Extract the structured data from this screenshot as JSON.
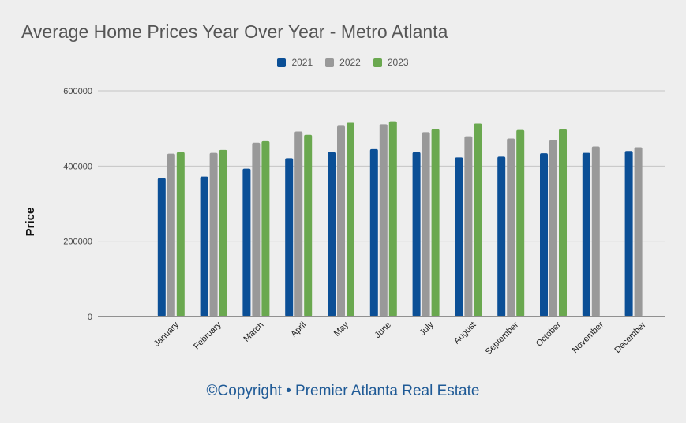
{
  "chart_data": {
    "type": "bar",
    "title": "Average Home Prices Year Over Year - Metro Atlanta",
    "xlabel": "",
    "ylabel": "Price",
    "ylim": [
      0,
      600000
    ],
    "yticks": [
      "0",
      "200000",
      "400000",
      "600000"
    ],
    "grid": true,
    "legend_position": "top-center",
    "categories": [
      "",
      "January",
      "February",
      "March",
      "April",
      "May",
      "June",
      "July",
      "August",
      "September",
      "October",
      "November",
      "December"
    ],
    "series": [
      {
        "name": "2021",
        "color": "#0b4f96",
        "values": [
          1000,
          368000,
          372000,
          393000,
          421000,
          437000,
          445000,
          437000,
          423000,
          425000,
          434000,
          435000,
          440000
        ]
      },
      {
        "name": "2022",
        "color": "#999999",
        "values": [
          1000,
          433000,
          435000,
          462000,
          492000,
          507000,
          511000,
          490000,
          479000,
          473000,
          469000,
          452000,
          450000
        ]
      },
      {
        "name": "2023",
        "color": "#6aa84f",
        "values": [
          1000,
          437000,
          443000,
          466000,
          483000,
          515000,
          519000,
          498000,
          513000,
          496000,
          498000,
          null,
          null
        ]
      }
    ]
  },
  "footer": {
    "copyright": "©Copyright • Premier Atlanta Real Estate"
  }
}
